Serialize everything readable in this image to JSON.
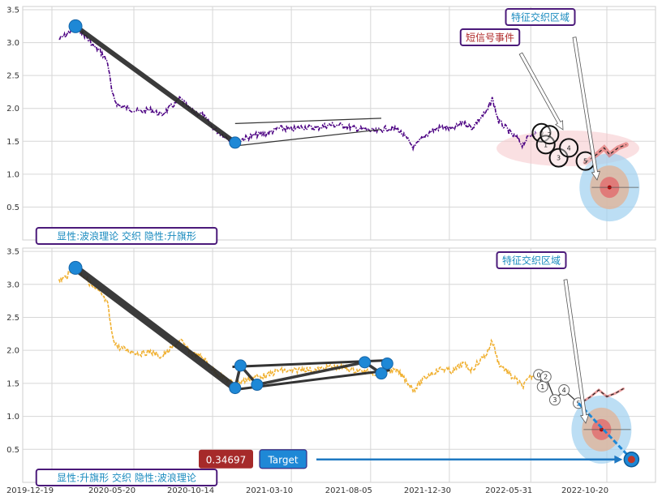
{
  "chart_data": [
    {
      "type": "line",
      "panel": "top",
      "ylim": [
        0.0,
        3.55
      ],
      "yticks": [
        "0.5",
        "1.0",
        "1.5",
        "2.0",
        "2.5",
        "3.0",
        "3.5"
      ],
      "grid": true,
      "series_color": "#4b0082",
      "series": [
        {
          "x": [
            "2020-01-01",
            "2020-01-15",
            "2020-02-01",
            "2020-02-20",
            "2020-03-05",
            "2020-03-20",
            "2020-04-01",
            "2020-04-10",
            "2020-04-20",
            "2020-05-10",
            "2020-06-01",
            "2020-06-20",
            "2020-07-10",
            "2020-07-25",
            "2020-08-15",
            "2020-09-05",
            "2020-09-25",
            "2020-10-15",
            "2020-11-01",
            "2020-11-12",
            "2020-11-25"
          ],
          "y": [
            3.05,
            3.12,
            3.25,
            3.1,
            2.95,
            2.85,
            2.7,
            2.2,
            2.05,
            2.0,
            1.95,
            1.98,
            1.9,
            2.0,
            2.15,
            1.95,
            1.9,
            1.7,
            1.6,
            1.55,
            1.48
          ]
        },
        {
          "x": [
            "2020-11-25",
            "2020-12-15",
            "2021-01-05",
            "2021-01-25",
            "2021-02-15",
            "2021-03-10",
            "2021-04-01",
            "2021-04-25",
            "2021-05-20",
            "2021-06-15",
            "2021-07-05",
            "2021-07-25",
            "2021-08-15",
            "2021-09-05",
            "2021-09-25",
            "2021-10-10",
            "2021-10-25",
            "2021-11-10",
            "2021-11-25",
            "2021-12-15",
            "2022-01-05",
            "2022-01-25",
            "2022-02-10",
            "2022-02-25",
            "2022-03-10",
            "2022-03-20",
            "2022-04-01",
            "2022-04-15",
            "2022-04-25",
            "2022-05-05",
            "2022-05-15",
            "2022-05-31",
            "2022-06-10"
          ],
          "y": [
            1.5,
            1.55,
            1.6,
            1.62,
            1.7,
            1.68,
            1.72,
            1.7,
            1.75,
            1.74,
            1.7,
            1.68,
            1.65,
            1.7,
            1.68,
            1.55,
            1.4,
            1.55,
            1.65,
            1.72,
            1.68,
            1.8,
            1.7,
            1.85,
            1.95,
            2.15,
            1.8,
            1.7,
            1.6,
            1.55,
            1.45,
            1.6,
            1.62
          ]
        }
      ],
      "trend_lines": [
        {
          "x": [
            "2020-02-01",
            "2020-11-25"
          ],
          "y": [
            3.25,
            1.48
          ]
        }
      ],
      "flag_lines": [
        {
          "x": [
            "2020-11-25",
            "2021-08-25"
          ],
          "y": [
            1.77,
            1.85
          ]
        },
        {
          "x": [
            "2020-11-25",
            "2021-08-25"
          ],
          "y": [
            1.43,
            1.68
          ]
        }
      ],
      "pivots": [
        {
          "x": "2020-02-01",
          "y": 3.25
        },
        {
          "x": "2020-11-25",
          "y": 1.48
        }
      ],
      "signals": [
        {
          "label": "0",
          "x": "2022-06-20",
          "y": 1.63
        },
        {
          "label": "1",
          "x": "2022-06-28",
          "y": 1.45
        },
        {
          "label": "2",
          "x": "2022-07-05",
          "y": 1.6
        },
        {
          "label": "3",
          "x": "2022-07-22",
          "y": 1.25
        },
        {
          "label": "4",
          "x": "2022-08-10",
          "y": 1.4
        },
        {
          "label": "5",
          "x": "2022-09-10",
          "y": 1.2
        }
      ],
      "forecast": [
        {
          "x": [
            "2022-09-10",
            "2022-10-01",
            "2022-10-15",
            "2022-10-25",
            "2022-11-10",
            "2022-11-25"
          ],
          "y": [
            1.18,
            1.3,
            1.4,
            1.3,
            1.4,
            1.45
          ]
        }
      ],
      "target_center": {
        "x": "2022-10-25",
        "y": 0.8
      },
      "labels": {
        "overlay_label": "显性:波浪理论 交织 隐性:升旗形",
        "signal_event": "短信号事件",
        "feature_zone": "特征交织区域"
      }
    },
    {
      "type": "line",
      "panel": "bottom",
      "ylim": [
        0.0,
        3.55
      ],
      "yticks": [
        "0.5",
        "1.0",
        "1.5",
        "2.0",
        "2.5",
        "3.0",
        "3.5"
      ],
      "xticks": [
        "2019-12-19",
        "2020-05-20",
        "2020-10-14",
        "2021-03-10",
        "2021-08-05",
        "2021-12-30",
        "2022-05-31",
        "2022-10-20"
      ],
      "grid": true,
      "series_color": "#f0b030",
      "series": [
        {
          "x": [
            "2020-01-01",
            "2020-01-15",
            "2020-02-01",
            "2020-02-20",
            "2020-03-05",
            "2020-03-20",
            "2020-04-01",
            "2020-04-10",
            "2020-04-20",
            "2020-05-10",
            "2020-06-01",
            "2020-06-20",
            "2020-07-10",
            "2020-07-25",
            "2020-08-15",
            "2020-09-05",
            "2020-09-25",
            "2020-10-15",
            "2020-11-01",
            "2020-11-12",
            "2020-11-25"
          ],
          "y": [
            3.05,
            3.12,
            3.25,
            3.1,
            2.95,
            2.85,
            2.7,
            2.2,
            2.05,
            2.0,
            1.95,
            1.98,
            1.9,
            2.0,
            2.15,
            1.95,
            1.9,
            1.7,
            1.6,
            1.55,
            1.48
          ]
        },
        {
          "x": [
            "2020-11-25",
            "2020-12-15",
            "2021-01-05",
            "2021-01-25",
            "2021-02-15",
            "2021-03-10",
            "2021-04-01",
            "2021-04-25",
            "2021-05-20",
            "2021-06-15",
            "2021-07-05",
            "2021-07-25",
            "2021-08-15",
            "2021-09-05",
            "2021-09-25",
            "2021-10-10",
            "2021-10-25",
            "2021-11-10",
            "2021-11-25",
            "2021-12-15",
            "2022-01-05",
            "2022-01-25",
            "2022-02-10",
            "2022-02-25",
            "2022-03-10",
            "2022-03-20",
            "2022-04-01",
            "2022-04-15",
            "2022-04-25",
            "2022-05-05",
            "2022-05-15",
            "2022-05-31",
            "2022-06-10"
          ],
          "y": [
            1.5,
            1.55,
            1.6,
            1.62,
            1.7,
            1.68,
            1.72,
            1.7,
            1.75,
            1.74,
            1.7,
            1.68,
            1.65,
            1.7,
            1.68,
            1.55,
            1.4,
            1.55,
            1.65,
            1.72,
            1.68,
            1.8,
            1.7,
            1.85,
            1.95,
            2.15,
            1.8,
            1.7,
            1.6,
            1.55,
            1.45,
            1.6,
            1.62
          ]
        }
      ],
      "trend_lines": [
        {
          "x": [
            "2020-02-01",
            "2020-11-25"
          ],
          "y": [
            3.25,
            1.43
          ]
        },
        {
          "x": [
            "2020-11-25",
            "2020-12-05",
            "2021-01-05",
            "2021-07-25",
            "2021-08-25",
            "2021-09-05"
          ],
          "y": [
            1.43,
            1.77,
            1.48,
            1.82,
            1.65,
            1.8
          ]
        }
      ],
      "flag_lines": [
        {
          "x": [
            "2020-11-20",
            "2021-09-10"
          ],
          "y": [
            1.75,
            1.85
          ]
        },
        {
          "x": [
            "2020-11-20",
            "2021-09-10"
          ],
          "y": [
            1.4,
            1.7
          ]
        }
      ],
      "pivots": [
        {
          "x": "2020-02-01",
          "y": 3.25
        },
        {
          "x": "2020-11-25",
          "y": 1.43
        },
        {
          "x": "2020-12-05",
          "y": 1.77
        },
        {
          "x": "2021-01-05",
          "y": 1.48
        },
        {
          "x": "2021-07-25",
          "y": 1.82
        },
        {
          "x": "2021-08-25",
          "y": 1.65
        },
        {
          "x": "2021-09-05",
          "y": 1.8
        }
      ],
      "signals": [
        {
          "label": "0",
          "x": "2022-06-15",
          "y": 1.63
        },
        {
          "label": "1",
          "x": "2022-06-22",
          "y": 1.45
        },
        {
          "label": "2",
          "x": "2022-06-28",
          "y": 1.6
        },
        {
          "label": "3",
          "x": "2022-07-15",
          "y": 1.25
        },
        {
          "label": "4",
          "x": "2022-08-01",
          "y": 1.4
        },
        {
          "label": "5",
          "x": "2022-08-28",
          "y": 1.2
        }
      ],
      "forecast": [
        {
          "x": [
            "2022-08-28",
            "2022-09-20",
            "2022-10-05",
            "2022-10-20",
            "2022-11-05",
            "2022-11-20"
          ],
          "y": [
            1.18,
            1.3,
            1.4,
            1.3,
            1.35,
            1.42
          ]
        }
      ],
      "target_line": {
        "x": [
          "2022-08-28",
          "2022-12-05"
        ],
        "y": [
          1.2,
          0.35
        ]
      },
      "target_center": {
        "x": "2022-10-10",
        "y": 0.8
      },
      "target_point": {
        "x": "2022-12-05",
        "y": 0.34697
      },
      "labels": {
        "overlay_label": "显性:升旗形 交织 隐性:波浪理论",
        "feature_zone": "特征交织区域",
        "target_value": "0.34697",
        "target_label": "Target"
      }
    }
  ]
}
